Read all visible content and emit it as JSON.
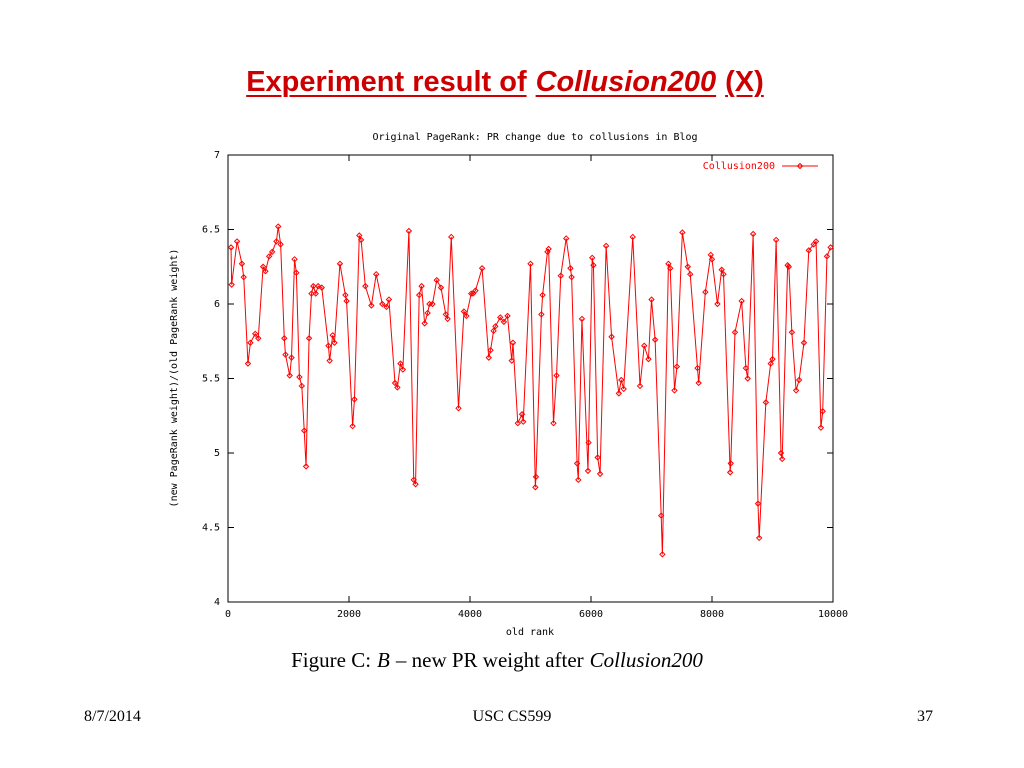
{
  "slide": {
    "title": [
      "Experiment result of",
      "Collusion200",
      "(X)"
    ],
    "caption": [
      "Figure C:",
      "B",
      "– new PR weight after",
      "Collusion200"
    ],
    "footer": {
      "date": "8/7/2014",
      "center": "USC CS599",
      "page": "37"
    }
  },
  "chart_data": {
    "type": "line",
    "title": "Original PageRank: PR change due to collusions in Blog",
    "xlabel": "old rank",
    "ylabel": "(new PageRank weight)/(old PageRank weight)",
    "xlim": [
      0,
      10000
    ],
    "xticks": [
      0,
      2000,
      4000,
      6000,
      8000,
      10000
    ],
    "ylim": [
      4,
      7
    ],
    "yticks": [
      4,
      4.5,
      5,
      5.5,
      6,
      6.5,
      7
    ],
    "grid": false,
    "legend": "top-right",
    "series": [
      {
        "name": "Collusion200",
        "color": "#ff0000",
        "x": [
          50,
          60,
          150,
          230,
          260,
          330,
          370,
          450,
          500,
          580,
          620,
          680,
          730,
          800,
          830,
          870,
          930,
          950,
          1020,
          1050,
          1100,
          1130,
          1180,
          1220,
          1260,
          1290,
          1340,
          1380,
          1410,
          1450,
          1490,
          1550,
          1660,
          1680,
          1730,
          1760,
          1850,
          1940,
          1960,
          2060,
          2090,
          2170,
          2200,
          2270,
          2370,
          2450,
          2550,
          2620,
          2660,
          2760,
          2800,
          2850,
          2890,
          2990,
          3070,
          3100,
          3160,
          3200,
          3250,
          3300,
          3330,
          3380,
          3450,
          3520,
          3600,
          3630,
          3690,
          3810,
          3900,
          3940,
          4020,
          4050,
          4090,
          4200,
          4310,
          4340,
          4390,
          4420,
          4500,
          4560,
          4620,
          4690,
          4710,
          4790,
          4860,
          4880,
          5000,
          5080,
          5090,
          5180,
          5200,
          5280,
          5300,
          5380,
          5430,
          5500,
          5590,
          5660,
          5680,
          5770,
          5790,
          5850,
          5950,
          5960,
          6020,
          6040,
          6110,
          6150,
          6250,
          6340,
          6460,
          6500,
          6540,
          6690,
          6810,
          6880,
          6950,
          7000,
          7060,
          7160,
          7180,
          7280,
          7310,
          7380,
          7420,
          7510,
          7600,
          7640,
          7760,
          7780,
          7890,
          7980,
          8000,
          8090,
          8160,
          8190,
          8300,
          8310,
          8380,
          8490,
          8560,
          8590,
          8680,
          8760,
          8780,
          8890,
          8970,
          9000,
          9060,
          9140,
          9160,
          9250,
          9270,
          9320,
          9390,
          9440,
          9520,
          9600,
          9680,
          9720,
          9800,
          9830,
          9900,
          9960
        ],
        "values": [
          6.38,
          6.13,
          6.42,
          6.27,
          6.18,
          5.6,
          5.74,
          5.8,
          5.77,
          6.25,
          6.22,
          6.32,
          6.35,
          6.42,
          6.52,
          6.4,
          5.77,
          5.66,
          5.52,
          5.64,
          6.3,
          6.21,
          5.51,
          5.45,
          5.15,
          4.91,
          5.77,
          6.07,
          6.12,
          6.07,
          6.12,
          6.11,
          5.72,
          5.62,
          5.79,
          5.74,
          6.27,
          6.06,
          6.02,
          5.18,
          5.36,
          6.46,
          6.43,
          6.12,
          5.99,
          6.2,
          6.0,
          5.98,
          6.03,
          5.47,
          5.44,
          5.6,
          5.56,
          6.49,
          4.82,
          4.79,
          6.06,
          6.12,
          5.87,
          5.94,
          6.0,
          6.0,
          6.16,
          6.11,
          5.93,
          5.9,
          6.45,
          5.3,
          5.95,
          5.92,
          6.07,
          6.07,
          6.09,
          6.24,
          5.64,
          5.69,
          5.82,
          5.85,
          5.91,
          5.88,
          5.92,
          5.62,
          5.74,
          5.2,
          5.26,
          5.21,
          6.27,
          4.77,
          4.84,
          5.93,
          6.06,
          6.35,
          6.37,
          5.2,
          5.52,
          6.19,
          6.44,
          6.24,
          6.18,
          4.93,
          4.82,
          5.9,
          4.88,
          5.07,
          6.31,
          6.26,
          4.97,
          4.86,
          6.39,
          5.78,
          5.4,
          5.49,
          5.43,
          6.45,
          5.45,
          5.72,
          5.63,
          6.03,
          5.76,
          4.58,
          4.32,
          6.27,
          6.24,
          5.42,
          5.58,
          6.48,
          6.25,
          6.2,
          5.57,
          5.47,
          6.08,
          6.33,
          6.3,
          6.0,
          6.23,
          6.2,
          4.87,
          4.93,
          5.81,
          6.02,
          5.57,
          5.5,
          6.47,
          4.66,
          4.43,
          5.34,
          5.6,
          5.63,
          6.43,
          5.0,
          4.96,
          6.26,
          6.25,
          5.81,
          5.42,
          5.49,
          5.74,
          6.36,
          6.4,
          6.42,
          5.17,
          5.28,
          6.32,
          6.38
        ]
      }
    ]
  }
}
